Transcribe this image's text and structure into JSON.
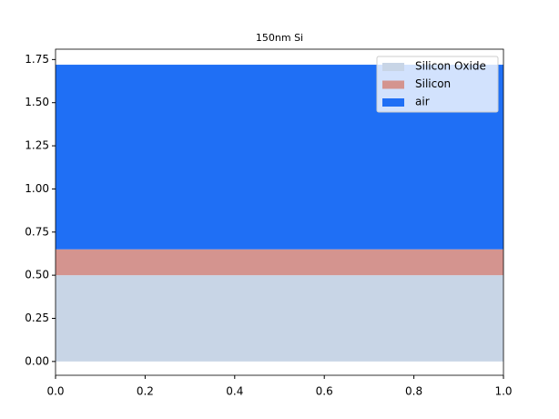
{
  "chart_data": {
    "type": "layers",
    "title": "150nm Si",
    "series": [
      {
        "name": "Silicon Oxide",
        "color": "#c8d5e6",
        "values": [
          0.5
        ]
      },
      {
        "name": "Silicon",
        "color": "#d4948f",
        "values": [
          0.15
        ]
      },
      {
        "name": "air",
        "color": "#1f6ff5",
        "values": [
          1.07
        ]
      }
    ],
    "xlim": [
      0,
      1
    ],
    "xticks": [
      {
        "value": 0,
        "label": "0.0"
      },
      0.2,
      0.4,
      0.6,
      0.8,
      {
        "value": 1,
        "label": "1.0"
      }
    ],
    "ylim": [
      -0.08,
      1.81
    ],
    "yticks": [
      {
        "value": 0,
        "label": "0.00"
      },
      0.25,
      {
        "value": 0.5,
        "label": "0.50"
      },
      0.75,
      {
        "value": 1,
        "label": "1.00"
      },
      1.25,
      {
        "value": 1.5,
        "label": "1.50"
      },
      1.75
    ],
    "legend": "upper right"
  }
}
